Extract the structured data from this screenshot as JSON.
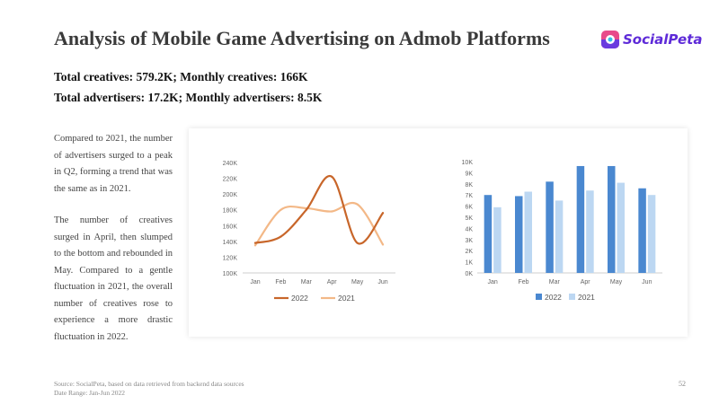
{
  "header": {
    "title": "Analysis of Mobile Game Advertising on Admob Platforms",
    "logo_text": "SocialPeta"
  },
  "stats": {
    "line1": "Total creatives: 579.2K; Monthly creatives: 166K",
    "line2": "Total advertisers: 17.2K; Monthly advertisers: 8.5K"
  },
  "analysis": {
    "paragraph1": "Compared to 2021, the number of advertisers surged to a peak in Q2, forming a trend that was the same as in 2021.",
    "paragraph2": "The number of creatives surged in April, then slumped to the bottom and rebounded in May. Compared to a gentle fluctuation in 2021, the overall number of creatives rose to experience a more drastic fluctuation in 2022."
  },
  "footer": {
    "source": "Source: SocialPeta, based on data retrieved from backend data sources",
    "date_range": "Date Range: Jan-Jun 2022",
    "page_number": "52"
  },
  "colors": {
    "series_2022_line": "#c8662a",
    "series_2021_line": "#f3b887",
    "series_2022_bar": "#4a88d0",
    "series_2021_bar": "#bcd7f2",
    "logo_purple": "#5e2bd8"
  },
  "chart_data": [
    {
      "type": "line",
      "categories": [
        "Jan",
        "Feb",
        "Mar",
        "Apr",
        "May",
        "Jun"
      ],
      "series": [
        {
          "name": "2022",
          "values": [
            138000,
            146000,
            180000,
            222000,
            138000,
            176000
          ]
        },
        {
          "name": "2021",
          "values": [
            135000,
            180000,
            182000,
            178000,
            187000,
            136000
          ]
        }
      ],
      "ylim": [
        100000,
        240000
      ],
      "yticks": [
        "100K",
        "120K",
        "140K",
        "160K",
        "180K",
        "200K",
        "220K",
        "240K"
      ],
      "grid": false,
      "legend": "bottom"
    },
    {
      "type": "bar",
      "categories": [
        "Jan",
        "Feb",
        "Mar",
        "Apr",
        "May",
        "Jun"
      ],
      "series": [
        {
          "name": "2022",
          "values": [
            7000,
            6900,
            8200,
            9600,
            9600,
            7600
          ]
        },
        {
          "name": "2021",
          "values": [
            5900,
            7300,
            6500,
            7400,
            8100,
            7000
          ]
        }
      ],
      "ylim": [
        0,
        10000
      ],
      "yticks": [
        "0K",
        "1K",
        "2K",
        "3K",
        "4K",
        "5K",
        "6K",
        "7K",
        "8K",
        "9K",
        "10K"
      ],
      "grid": false,
      "legend": "bottom"
    }
  ]
}
